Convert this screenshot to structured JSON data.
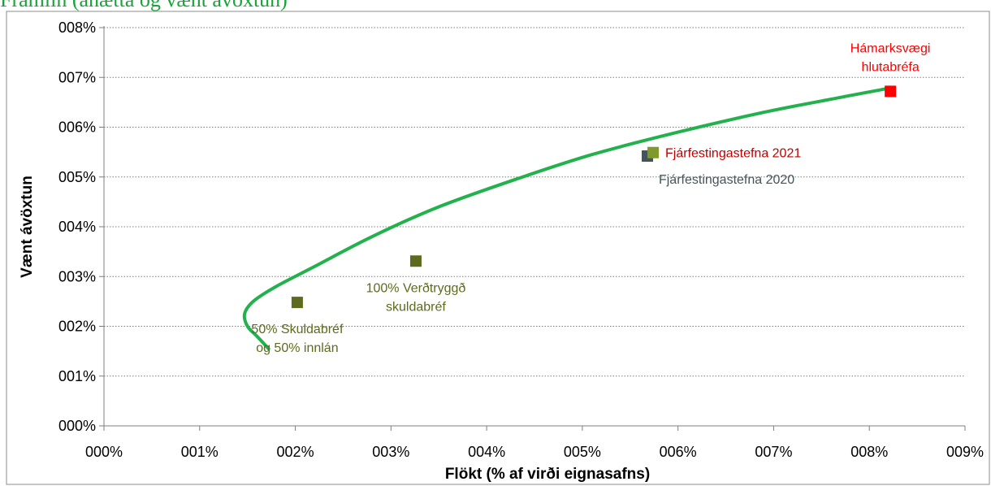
{
  "chart_data": {
    "type": "scatter",
    "title": "Framlín (áhætta og vænt ávöxtun)",
    "xlabel": "Flökt (% af virði eignasafns)",
    "ylabel": "Vænt ávöxtun",
    "xlim": [
      0,
      9
    ],
    "ylim": [
      0,
      8
    ],
    "x_ticks": [
      {
        "value": 0,
        "label": "000%"
      },
      {
        "value": 1,
        "label": "001%"
      },
      {
        "value": 2,
        "label": "002%"
      },
      {
        "value": 3,
        "label": "003%"
      },
      {
        "value": 4,
        "label": "004%"
      },
      {
        "value": 5,
        "label": "005%"
      },
      {
        "value": 6,
        "label": "006%"
      },
      {
        "value": 7,
        "label": "007%"
      },
      {
        "value": 8,
        "label": "008%"
      },
      {
        "value": 9,
        "label": "009%"
      }
    ],
    "y_ticks": [
      {
        "value": 0,
        "label": "000%"
      },
      {
        "value": 1,
        "label": "001%"
      },
      {
        "value": 2,
        "label": "002%"
      },
      {
        "value": 3,
        "label": "003%"
      },
      {
        "value": 4,
        "label": "004%"
      },
      {
        "value": 5,
        "label": "005%"
      },
      {
        "value": 6,
        "label": "006%"
      },
      {
        "value": 7,
        "label": "007%"
      },
      {
        "value": 8,
        "label": "008%"
      }
    ],
    "grid": "horizontal-dotted",
    "frontier": {
      "color": "#22b14c",
      "x": [
        1.72,
        1.6,
        1.5,
        1.47,
        1.56,
        1.8,
        2.2,
        2.8,
        3.5,
        4.3,
        5.1,
        6.0,
        6.9,
        7.7,
        8.2
      ],
      "y": [
        1.55,
        1.8,
        2.0,
        2.25,
        2.5,
        2.8,
        3.2,
        3.8,
        4.4,
        4.95,
        5.45,
        5.9,
        6.3,
        6.6,
        6.78
      ]
    },
    "points": [
      {
        "x": 2.02,
        "y": 2.48,
        "color": "#5c6b1e",
        "label_lines": [
          "50% Skuldabréf",
          "og 50% innlán"
        ],
        "label_color": "#5c6b1e",
        "label_anchor": "below"
      },
      {
        "x": 3.26,
        "y": 3.31,
        "color": "#5c6b1e",
        "label_lines": [
          "100% Verðtryggð",
          "skuldabréf"
        ],
        "label_color": "#5c6b1e",
        "label_anchor": "below"
      },
      {
        "x": 5.68,
        "y": 5.42,
        "color": "#44545a",
        "label_lines": [
          "Fjárfestingastefna 2020"
        ],
        "label_color": "#44545a",
        "label_anchor": "below-right"
      },
      {
        "x": 5.74,
        "y": 5.49,
        "color": "#7f9a2a",
        "label_lines": [
          "Fjárfestingastefna 2021"
        ],
        "label_color": "#c00000",
        "label_anchor": "right"
      },
      {
        "x": 8.22,
        "y": 6.72,
        "color": "#ff0000",
        "label_lines": [
          "Hámarksvægi",
          "hlutabréfa"
        ],
        "label_color": "#ff0000",
        "label_anchor": "above"
      }
    ]
  }
}
